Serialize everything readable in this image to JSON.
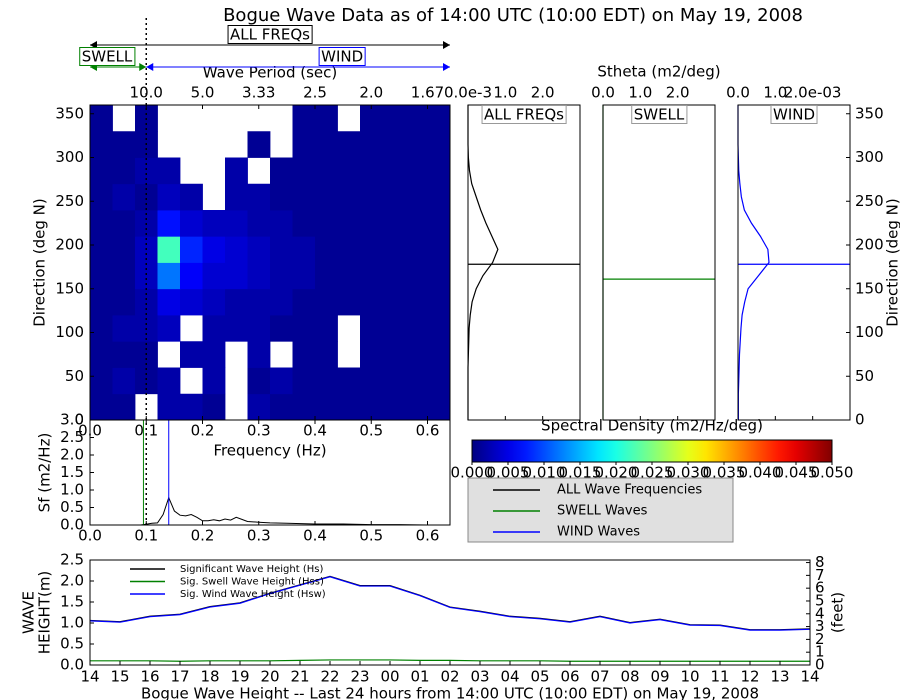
{
  "chart_data": [
    {
      "type": "heatmap",
      "title": "Bogue Wave Data as of 14:00 UTC (10:00 EDT) on May 19, 2008",
      "xlabel": "Frequency (Hz)",
      "ylabel": "Direction (deg N)",
      "x2label": "Wave Period (sec)",
      "xlim": [
        0,
        0.64
      ],
      "ylim": [
        0,
        360
      ],
      "xticks": [
        {
          "value": 0,
          "label": "0.0"
        },
        0.1,
        0.2,
        0.3,
        0.4,
        0.5,
        0.6
      ],
      "yticks": [
        0,
        50,
        100,
        150,
        200,
        250,
        300,
        350
      ],
      "x2ticks": [
        {
          "value": 0.1,
          "label": "10.0"
        },
        {
          "value": 0.2,
          "label": "5.0"
        },
        {
          "value": 0.3,
          "label": "3.33"
        },
        {
          "value": 0.4,
          "label": "2.5"
        },
        {
          "value": 0.5,
          "label": "2.0"
        },
        {
          "value": 0.6,
          "label": "1.67"
        }
      ],
      "xbins": [
        0,
        0.04,
        0.08,
        0.12,
        0.16,
        0.2,
        0.24,
        0.28,
        0.32,
        0.36,
        0.4,
        0.44,
        0.48,
        0.52,
        0.56,
        0.6,
        0.64
      ],
      "ybins": [
        0,
        30,
        60,
        90,
        120,
        150,
        180,
        210,
        240,
        270,
        300,
        330,
        360
      ],
      "values": [
        [
          0.001,
          0.001,
          null,
          0.002,
          0.002,
          0.001,
          null,
          0.002,
          0.001,
          0.001,
          0.001,
          0.001,
          0.001,
          0.001,
          0.001,
          0.001
        ],
        [
          0.001,
          0.002,
          0.001,
          0.002,
          null,
          0.002,
          null,
          0.001,
          0.002,
          0.001,
          0.001,
          0.001,
          0.001,
          0.001,
          0.001,
          0.001
        ],
        [
          0.001,
          0.001,
          0.001,
          null,
          0.002,
          0.002,
          null,
          0.002,
          null,
          0.001,
          0.001,
          null,
          0.001,
          0.001,
          0.001,
          0.001
        ],
        [
          0.001,
          0.002,
          0.002,
          0.003,
          null,
          0.002,
          0.002,
          0.002,
          0.001,
          0.001,
          0.001,
          null,
          0.001,
          0.001,
          0.001,
          0.001
        ],
        [
          0.001,
          0.001,
          0.002,
          0.005,
          0.004,
          0.003,
          0.002,
          0.002,
          0.002,
          0.001,
          0.001,
          0.001,
          0.001,
          0.001,
          0.001,
          0.001
        ],
        [
          0.001,
          0.001,
          0.003,
          0.012,
          0.006,
          0.004,
          0.004,
          0.003,
          0.002,
          0.002,
          0.001,
          0.001,
          0.001,
          0.001,
          0.001,
          0.001
        ],
        [
          0.001,
          0.001,
          0.003,
          0.022,
          0.008,
          0.005,
          0.004,
          0.003,
          0.002,
          0.002,
          0.001,
          0.001,
          0.001,
          0.001,
          0.001,
          0.001
        ],
        [
          0.001,
          0.001,
          0.002,
          0.007,
          0.004,
          0.003,
          0.003,
          0.002,
          0.002,
          0.001,
          0.001,
          0.001,
          0.001,
          0.001,
          0.001,
          0.001
        ],
        [
          0.001,
          0.002,
          0.001,
          0.003,
          0.002,
          null,
          0.002,
          0.002,
          0.001,
          0.001,
          0.001,
          0.001,
          0.001,
          0.001,
          0.001,
          0.001
        ],
        [
          0.001,
          0.001,
          0.002,
          0.002,
          null,
          null,
          0.002,
          null,
          0.001,
          0.001,
          0.001,
          0.001,
          0.001,
          0.001,
          0.001,
          0.001
        ],
        [
          0.001,
          0.001,
          0.001,
          null,
          null,
          null,
          null,
          0.001,
          null,
          0.001,
          0.001,
          0.001,
          0.001,
          0.001,
          0.001,
          0.001
        ],
        [
          0.001,
          null,
          0.001,
          null,
          null,
          null,
          null,
          null,
          null,
          0.001,
          0.001,
          null,
          0.001,
          0.001,
          0.001,
          0.001
        ]
      ],
      "separation_frequency": 0.1,
      "annotations": {
        "all": {
          "text": "ALL FREQs",
          "color": "#000000"
        },
        "swell": {
          "text": "SWELL",
          "color": "#008000"
        },
        "wind": {
          "text": "WIND",
          "color": "#0000ff"
        }
      },
      "colorbar": {
        "label": "Spectral Density (m2/Hz/deg)",
        "colormap": "jet",
        "lim": [
          0,
          0.05
        ],
        "ticks": [
          {
            "value": 0,
            "label": "0.000"
          },
          0.005,
          {
            "value": 0.01,
            "label": "0.010"
          },
          0.015,
          {
            "value": 0.02,
            "label": "0.020"
          },
          0.025,
          {
            "value": 0.03,
            "label": "0.030"
          },
          0.035,
          {
            "value": 0.04,
            "label": "0.040"
          },
          0.045,
          {
            "value": 0.05,
            "label": "0.050"
          }
        ]
      }
    },
    {
      "type": "profile",
      "title": "ALL FREQs",
      "xlim": [
        0,
        3
      ],
      "ylim": [
        0,
        360
      ],
      "xticks": [
        {
          "value": 0,
          "label": "0.0e-3"
        },
        {
          "value": 1,
          "label": "1.0"
        },
        {
          "value": 2,
          "label": "2.0"
        }
      ],
      "directions": [
        0,
        15,
        30,
        45,
        60,
        75,
        90,
        105,
        120,
        135,
        150,
        165,
        180,
        195,
        210,
        225,
        240,
        255,
        270,
        285,
        300,
        315,
        330,
        345,
        360
      ],
      "series": [
        {
          "color": "#000000",
          "values": [
            0,
            0,
            0,
            0,
            0,
            0.01,
            0.02,
            0.03,
            0.06,
            0.11,
            0.22,
            0.4,
            0.66,
            0.8,
            0.64,
            0.48,
            0.34,
            0.22,
            0.1,
            0.04,
            0.01,
            0,
            0,
            0,
            0
          ]
        }
      ],
      "hline": 178
    },
    {
      "type": "profile",
      "title": "SWELL",
      "xlabel": "Stheta (m2/deg)",
      "xlim": [
        0,
        3
      ],
      "ylim": [
        0,
        360
      ],
      "xticks": [
        {
          "value": 0,
          "label": "0.0"
        },
        {
          "value": 1,
          "label": "1.0"
        },
        {
          "value": 2,
          "label": "2.0"
        }
      ],
      "directions": [
        0,
        15,
        30,
        45,
        60,
        75,
        90,
        105,
        120,
        135,
        150,
        165,
        180,
        195,
        210,
        225,
        240,
        255,
        270,
        285,
        300,
        315,
        330,
        345,
        360
      ],
      "series": [
        {
          "color": "#008000",
          "values": [
            0,
            0,
            0,
            0,
            0,
            0,
            0,
            0,
            0,
            0,
            0,
            0,
            0,
            0,
            0,
            0,
            0,
            0,
            0,
            0,
            0,
            0,
            0,
            0,
            0
          ]
        }
      ],
      "hline": 161
    },
    {
      "type": "profile",
      "title": "WIND",
      "ylabel": "Direction (deg N)",
      "xlim": [
        0,
        3
      ],
      "ylim": [
        0,
        360
      ],
      "xticks": [
        {
          "value": 0,
          "label": "0.0"
        },
        {
          "value": 1,
          "label": "1.0"
        },
        {
          "value": 2,
          "label": "2.0e-03"
        }
      ],
      "yticks": [
        0,
        50,
        100,
        150,
        200,
        250,
        300,
        350
      ],
      "directions": [
        0,
        15,
        30,
        45,
        60,
        75,
        90,
        105,
        120,
        135,
        150,
        165,
        180,
        195,
        210,
        225,
        240,
        255,
        270,
        285,
        300,
        315,
        330,
        345,
        360
      ],
      "series": [
        {
          "color": "#0000ff",
          "values": [
            0.01,
            0.01,
            0.01,
            0.02,
            0.03,
            0.04,
            0.06,
            0.08,
            0.11,
            0.18,
            0.27,
            0.55,
            0.83,
            0.8,
            0.6,
            0.36,
            0.17,
            0.09,
            0.05,
            0.02,
            0.01,
            0,
            0,
            0,
            0
          ]
        }
      ],
      "hline": 178
    },
    {
      "type": "line",
      "ylabel": "Sf (m2/Hz)",
      "xlim": [
        0,
        0.64
      ],
      "ylim": [
        0,
        3
      ],
      "xticks": [
        {
          "value": 0,
          "label": "0.0"
        },
        0.1,
        0.2,
        0.3,
        0.4,
        0.5,
        0.6
      ],
      "yticks": [
        {
          "value": 0,
          "label": "0.0"
        },
        0.5,
        {
          "value": 1,
          "label": "1.0"
        },
        1.5,
        {
          "value": 2,
          "label": "2.0"
        },
        2.5,
        {
          "value": 3,
          "label": "3.0"
        }
      ],
      "x": [
        0,
        0.05,
        0.09,
        0.1,
        0.11,
        0.12,
        0.13,
        0.14,
        0.15,
        0.16,
        0.17,
        0.18,
        0.19,
        0.2,
        0.21,
        0.22,
        0.23,
        0.24,
        0.25,
        0.26,
        0.27,
        0.28,
        0.3,
        0.32,
        0.35,
        0.4,
        0.45,
        0.5,
        0.55,
        0.6,
        0.64
      ],
      "series": [
        {
          "name": "ALL Wave Frequencies",
          "color": "#000000",
          "values": [
            0,
            0,
            0,
            0.02,
            0.05,
            0.06,
            0.3,
            0.78,
            0.4,
            0.28,
            0.26,
            0.3,
            0.22,
            0.12,
            0.12,
            0.15,
            0.12,
            0.17,
            0.14,
            0.22,
            0.16,
            0.1,
            0.08,
            0.06,
            0.05,
            0.03,
            0.03,
            0.01,
            0.01,
            0,
            0
          ]
        }
      ],
      "vlines": [
        {
          "name": "SWELL Waves",
          "color": "#008000",
          "x": 0.095
        },
        {
          "name": "WIND Waves",
          "color": "#0000ff",
          "x": 0.14
        }
      ]
    },
    {
      "type": "timeseries",
      "xlabel": "Bogue Wave Height -- Last 24 hours from 14:00 UTC (10:00 EDT) on May 19, 2008",
      "ylabel": [
        "WAVE",
        "HEIGHT(m)"
      ],
      "y2label": "(feet)",
      "categories": [
        "14",
        "15",
        "16",
        "17",
        "18",
        "19",
        "20",
        "21",
        "22",
        "23",
        "00",
        "01",
        "02",
        "03",
        "04",
        "05",
        "06",
        "07",
        "08",
        "09",
        "10",
        "11",
        "12",
        "13",
        "14"
      ],
      "ylim": [
        0,
        2.5
      ],
      "yticks": [
        {
          "value": 0,
          "label": "0.0"
        },
        0.5,
        {
          "value": 1,
          "label": "1.0"
        },
        1.5,
        {
          "value": 2,
          "label": "2.0"
        },
        2.5
      ],
      "y2lim": [
        0,
        8.2
      ],
      "y2ticks": [
        0,
        1,
        2,
        3,
        4,
        5,
        6,
        7,
        8
      ],
      "legend": "upper left",
      "series": [
        {
          "name": "Significant Wave Height (Hs)",
          "color": "#000000",
          "values": [
            1.06,
            1.03,
            1.16,
            1.21,
            1.39,
            1.48,
            1.71,
            1.91,
            2.11,
            1.89,
            1.89,
            1.66,
            1.38,
            1.28,
            1.16,
            1.11,
            1.03,
            1.16,
            1.01,
            1.09,
            0.96,
            0.95,
            0.84,
            0.84,
            0.86
          ]
        },
        {
          "name": "Sig. Swell Wave Height (Hss)",
          "color": "#008000",
          "values": [
            0.1,
            0.1,
            0.1,
            0.09,
            0.1,
            0.1,
            0.1,
            0.11,
            0.12,
            0.12,
            0.12,
            0.11,
            0.11,
            0.1,
            0.1,
            0.1,
            0.09,
            0.09,
            0.09,
            0.09,
            0.09,
            0.09,
            0.09,
            0.09,
            0.09
          ]
        },
        {
          "name": "Sig. Wind Wave Height (Hsw)",
          "color": "#0000ff",
          "values": [
            1.05,
            1.02,
            1.15,
            1.2,
            1.38,
            1.47,
            1.7,
            1.9,
            2.1,
            1.88,
            1.88,
            1.65,
            1.37,
            1.27,
            1.15,
            1.1,
            1.02,
            1.15,
            1.0,
            1.08,
            0.95,
            0.94,
            0.83,
            0.83,
            0.85
          ]
        }
      ]
    }
  ]
}
